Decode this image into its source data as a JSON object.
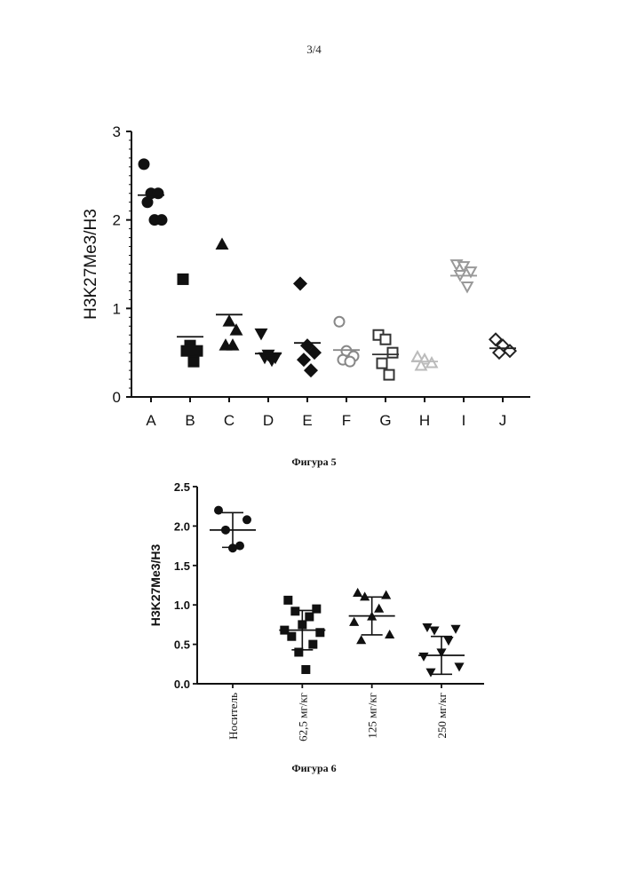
{
  "page": {
    "number": "3/4"
  },
  "figure5": {
    "caption": "Фигура 5"
  },
  "figure6": {
    "caption": "Фигура 6"
  },
  "chart_data": [
    {
      "type": "scatter",
      "ylabel": "H3K27Me3/H3",
      "ylim": [
        0,
        3
      ],
      "yticks": [
        0,
        1,
        2,
        3
      ],
      "categories": [
        "A",
        "B",
        "C",
        "D",
        "E",
        "F",
        "G",
        "H",
        "I",
        "J"
      ],
      "groups": [
        {
          "category": "A",
          "marker": "circle",
          "filled": true,
          "color": "#111111",
          "mean": 2.28,
          "points": [
            2.63,
            2.3,
            2.3,
            2.2,
            2.0,
            2.0
          ]
        },
        {
          "category": "B",
          "marker": "square",
          "filled": true,
          "color": "#111111",
          "mean": 0.68,
          "points": [
            1.33,
            0.58,
            0.52,
            0.52,
            0.4
          ]
        },
        {
          "category": "C",
          "marker": "triangle-up",
          "filled": true,
          "color": "#111111",
          "mean": 0.93,
          "points": [
            1.72,
            0.85,
            0.75,
            0.58,
            0.58
          ]
        },
        {
          "category": "D",
          "marker": "triangle-down",
          "filled": true,
          "color": "#111111",
          "mean": 0.49,
          "points": [
            0.72,
            0.48,
            0.45,
            0.45,
            0.42
          ]
        },
        {
          "category": "E",
          "marker": "diamond",
          "filled": true,
          "color": "#111111",
          "mean": 0.61,
          "points": [
            1.28,
            0.58,
            0.5,
            0.42,
            0.3
          ]
        },
        {
          "category": "F",
          "marker": "circle",
          "filled": false,
          "color": "#888888",
          "mean": 0.53,
          "points": [
            0.85,
            0.52,
            0.46,
            0.42,
            0.4
          ]
        },
        {
          "category": "G",
          "marker": "square",
          "filled": false,
          "color": "#333333",
          "mean": 0.48,
          "points": [
            0.7,
            0.65,
            0.5,
            0.38,
            0.25
          ]
        },
        {
          "category": "H",
          "marker": "triangle-up",
          "filled": false,
          "color": "#bbbbbb",
          "mean": 0.4,
          "points": [
            0.45,
            0.42,
            0.38,
            0.35
          ]
        },
        {
          "category": "I",
          "marker": "triangle-down",
          "filled": false,
          "color": "#999999",
          "mean": 1.37,
          "points": [
            1.5,
            1.48,
            1.42,
            1.38,
            1.25
          ]
        },
        {
          "category": "J",
          "marker": "diamond",
          "filled": false,
          "color": "#222222",
          "mean": 0.55,
          "points": [
            0.65,
            0.58,
            0.52,
            0.5
          ]
        }
      ]
    },
    {
      "type": "scatter",
      "ylabel": "H3K27Me3/H3",
      "ylim": [
        0,
        2.5
      ],
      "yticks": [
        "0.0",
        "0.5",
        "1.0",
        "1.5",
        "2.0",
        "2.5"
      ],
      "categories": [
        "Носитель",
        "62,5 мг/кг",
        "125 мг/кг",
        "250 мг/кг"
      ],
      "groups": [
        {
          "category": "Носитель",
          "marker": "circle",
          "mean": 1.95,
          "sd_low": 1.73,
          "sd_high": 2.17,
          "points": [
            2.2,
            2.08,
            1.95,
            1.75,
            1.72
          ]
        },
        {
          "category": "62,5 мг/кг",
          "marker": "square",
          "mean": 0.68,
          "sd_low": 0.43,
          "sd_high": 0.93,
          "points": [
            1.06,
            0.95,
            0.92,
            0.85,
            0.75,
            0.68,
            0.65,
            0.6,
            0.5,
            0.4,
            0.18
          ]
        },
        {
          "category": "125 мг/кг",
          "marker": "triangle-up",
          "mean": 0.86,
          "sd_low": 0.62,
          "sd_high": 1.1,
          "points": [
            1.15,
            1.12,
            1.1,
            0.95,
            0.85,
            0.78,
            0.62,
            0.55
          ]
        },
        {
          "category": "250 мг/кг",
          "marker": "triangle-down",
          "mean": 0.36,
          "sd_low": 0.12,
          "sd_high": 0.6,
          "points": [
            0.72,
            0.7,
            0.68,
            0.55,
            0.4,
            0.35,
            0.22,
            0.15
          ]
        }
      ]
    }
  ]
}
